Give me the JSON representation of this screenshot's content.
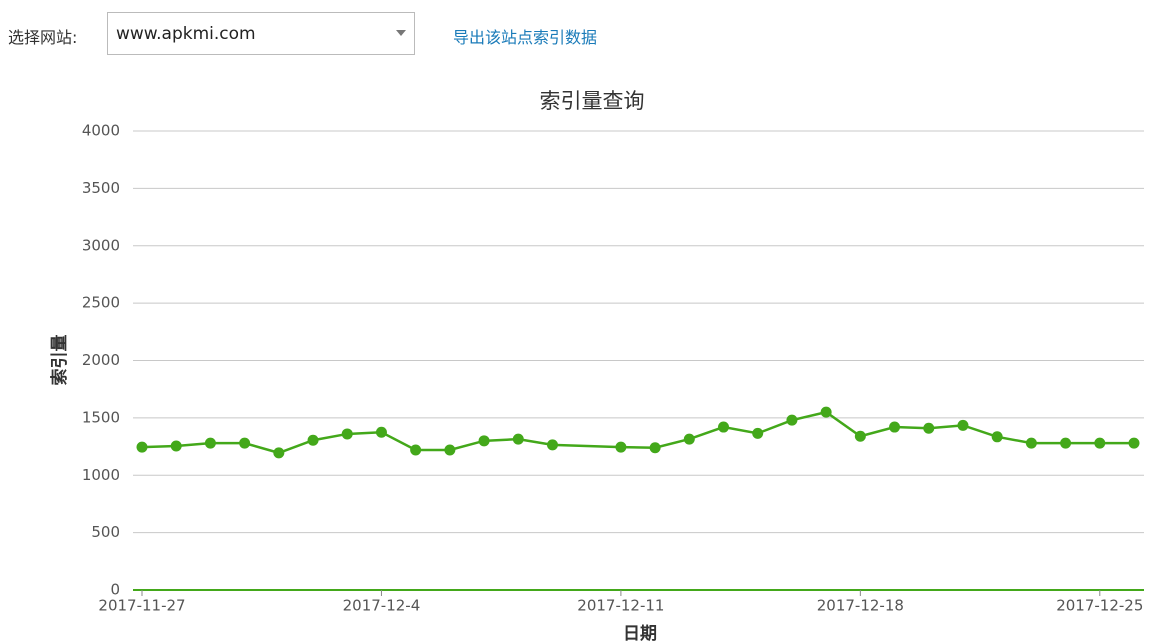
{
  "ui": {
    "site_label": "选择网站:",
    "site_select": "www.apkmi.com",
    "export_link": "导出该站点索引数据"
  },
  "chart_data": {
    "type": "line",
    "title": "索引量查询",
    "x_label": "日期",
    "y_label": "索引量",
    "x": [
      "2017-11-27",
      "2017-11-28",
      "2017-11-29",
      "2017-11-30",
      "2017-12-1",
      "2017-12-2",
      "2017-12-3",
      "2017-12-4",
      "2017-12-5",
      "2017-12-6",
      "2017-12-7",
      "2017-12-8",
      "2017-12-9",
      "2017-12-11",
      "2017-12-12",
      "2017-12-13",
      "2017-12-14",
      "2017-12-15",
      "2017-12-16",
      "2017-12-17",
      "2017-12-18",
      "2017-12-19",
      "2017-12-20",
      "2017-12-21",
      "2017-12-22",
      "2017-12-23",
      "2017-12-24",
      "2017-12-25",
      "2017-12-26"
    ],
    "values": [
      1245,
      1255,
      1280,
      1280,
      1195,
      1305,
      1360,
      1375,
      1220,
      1220,
      1300,
      1315,
      1265,
      1245,
      1240,
      1315,
      1420,
      1365,
      1480,
      1550,
      1340,
      1420,
      1410,
      1435,
      1335,
      1280,
      1280,
      1280,
      1280
    ],
    "color": "#43a81a",
    "xticks": [
      "2017-11-27",
      "2017-12-4",
      "2017-12-11",
      "2017-12-18",
      "2017-12-25"
    ],
    "ylim": [
      0,
      4000
    ],
    "yticks": [
      0,
      500,
      1000,
      1500,
      2000,
      2500,
      3000,
      3500,
      4000
    ],
    "grid": true
  }
}
